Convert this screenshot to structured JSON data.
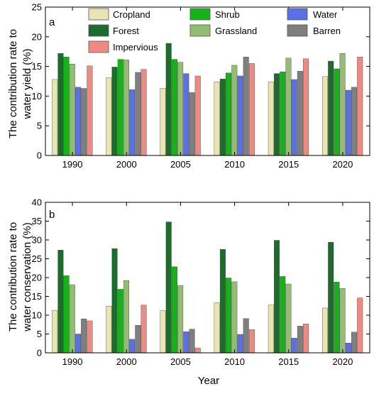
{
  "legend": {
    "items": [
      {
        "name": "Cropland",
        "color": "#e9e4b4"
      },
      {
        "name": "Shrub",
        "color": "#16b21a"
      },
      {
        "name": "Water",
        "color": "#5b70e6"
      },
      {
        "name": "Forest",
        "color": "#1f6b2c"
      },
      {
        "name": "Grassland",
        "color": "#93bd72"
      },
      {
        "name": "Barren",
        "color": "#7f7f7f"
      },
      {
        "name": "Impervious",
        "color": "#ef8a83"
      }
    ]
  },
  "xlabel": "Year",
  "chart_data": [
    {
      "type": "bar",
      "panel_label": "a",
      "ylabel_line1": "The contribution rate to",
      "ylabel_line2": "water yield (%)",
      "xlabel": "",
      "ylim": [
        0,
        25
      ],
      "yticks": [
        "0",
        "5",
        "10",
        "15",
        "20",
        "25"
      ],
      "categories": [
        "1990",
        "2000",
        "2005",
        "2010",
        "2015",
        "2020"
      ],
      "series": [
        {
          "name": "Cropland",
          "values": [
            12.8,
            13.1,
            11.3,
            12.4,
            12.4,
            13.3
          ]
        },
        {
          "name": "Forest",
          "values": [
            17.2,
            14.9,
            18.9,
            12.9,
            13.8,
            15.9
          ]
        },
        {
          "name": "Shrub",
          "values": [
            16.6,
            16.2,
            16.2,
            13.9,
            14.1,
            14.6
          ]
        },
        {
          "name": "Grassland",
          "values": [
            15.4,
            16.1,
            15.7,
            15.2,
            16.4,
            17.2
          ]
        },
        {
          "name": "Water",
          "values": [
            11.5,
            11.1,
            13.8,
            13.4,
            12.8,
            11.0
          ]
        },
        {
          "name": "Barren",
          "values": [
            11.3,
            14.0,
            10.6,
            16.6,
            14.2,
            11.5
          ]
        },
        {
          "name": "Impervious",
          "values": [
            15.1,
            14.5,
            13.4,
            15.5,
            16.3,
            16.6
          ]
        }
      ]
    },
    {
      "type": "bar",
      "panel_label": "b",
      "ylabel_line1": "The contribution rate to",
      "ylabel_line2": "water conservation (%)",
      "xlabel": "Year",
      "ylim": [
        0,
        40
      ],
      "yticks": [
        "0",
        "5",
        "10",
        "15",
        "20",
        "25",
        "30",
        "35",
        "40"
      ],
      "categories": [
        "1990",
        "2000",
        "2005",
        "2010",
        "2015",
        "2020"
      ],
      "series": [
        {
          "name": "Cropland",
          "values": [
            11.3,
            12.4,
            11.2,
            13.3,
            12.7,
            11.9
          ]
        },
        {
          "name": "Forest",
          "values": [
            27.3,
            27.7,
            34.8,
            27.5,
            29.9,
            29.4
          ]
        },
        {
          "name": "Shrub",
          "values": [
            20.5,
            16.9,
            22.9,
            19.9,
            20.3,
            18.8
          ]
        },
        {
          "name": "Grassland",
          "values": [
            18.1,
            19.2,
            17.9,
            18.9,
            18.3,
            17.1
          ]
        },
        {
          "name": "Water",
          "values": [
            5.0,
            3.6,
            5.6,
            4.9,
            3.9,
            2.6
          ]
        },
        {
          "name": "Barren",
          "values": [
            9.0,
            7.3,
            6.3,
            9.1,
            7.1,
            5.5
          ]
        },
        {
          "name": "Impervious",
          "values": [
            8.5,
            12.7,
            1.3,
            6.2,
            7.7,
            14.6
          ]
        }
      ]
    }
  ]
}
